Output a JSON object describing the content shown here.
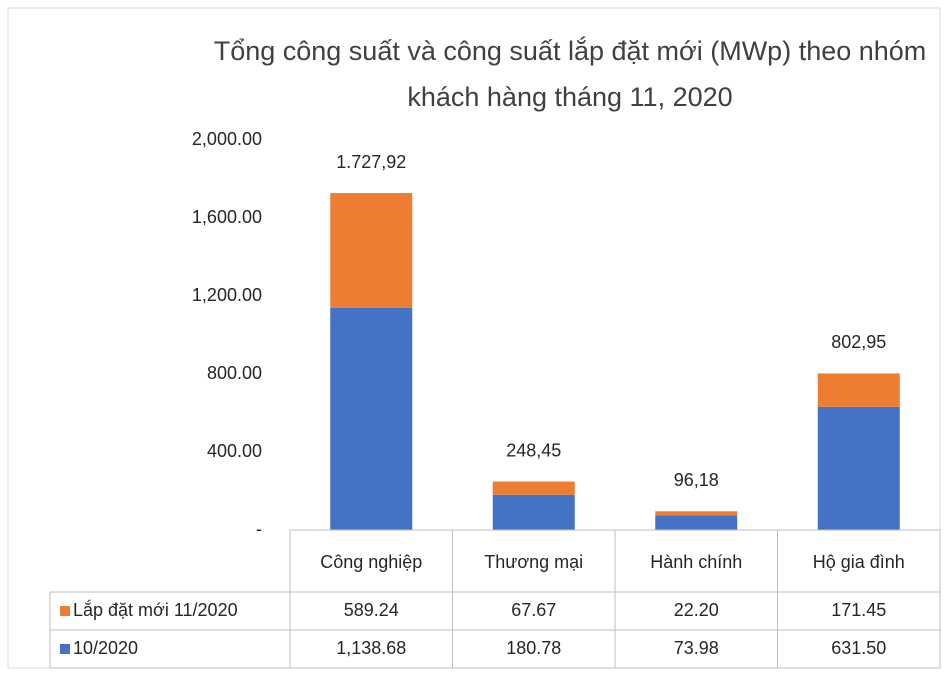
{
  "chart_data": {
    "type": "stacked_bar",
    "title": "Tổng công suất và công suất lắp đặt mới (MWp) theo nhóm khách hàng tháng 11, 2020",
    "categories": [
      "Công nghiệp",
      "Thương mại",
      "Hành chính",
      "Hộ gia đình"
    ],
    "series": [
      {
        "name": "10/2020",
        "color": "#4472c4",
        "values": [
          1138.68,
          180.78,
          73.98,
          631.5
        ],
        "value_labels": [
          "1,138.68",
          "180.78",
          "73.98",
          "631.50"
        ]
      },
      {
        "name": "Lắp đặt mới 11/2020",
        "color": "#ed7d31",
        "values": [
          589.24,
          67.67,
          22.2,
          171.45
        ],
        "value_labels": [
          "589.24",
          "67.67",
          "22.20",
          "171.45"
        ]
      }
    ],
    "totals": [
      1727.92,
      248.45,
      96.18,
      802.95
    ],
    "total_labels": [
      "1.727,92",
      "248,45",
      "96,18",
      "802,95"
    ],
    "ylim": [
      0,
      2000
    ],
    "yticks": [
      {
        "value": 0,
        "label": "-"
      },
      {
        "value": 400,
        "label": "400.00"
      },
      {
        "value": 800,
        "label": "800.00"
      },
      {
        "value": 1200,
        "label": "1,200.00"
      },
      {
        "value": 1600,
        "label": "1,600.00"
      },
      {
        "value": 2000,
        "label": "2,000.00"
      }
    ]
  }
}
